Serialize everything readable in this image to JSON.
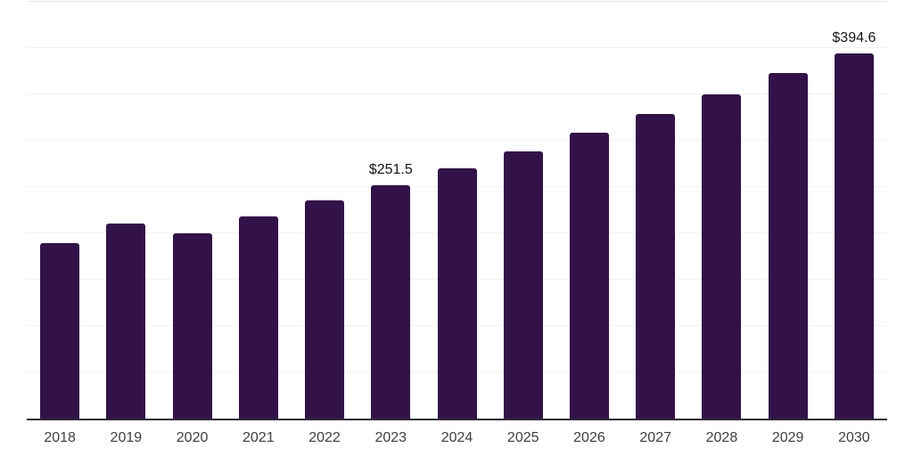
{
  "chart_data": {
    "type": "bar",
    "title": "",
    "xlabel": "",
    "ylabel": "",
    "categories": [
      "2018",
      "2019",
      "2020",
      "2021",
      "2022",
      "2023",
      "2024",
      "2025",
      "2026",
      "2027",
      "2028",
      "2029",
      "2030"
    ],
    "values": [
      189.1,
      210.9,
      200.3,
      218.0,
      235.6,
      251.5,
      269.9,
      288.5,
      308.4,
      328.6,
      350.0,
      373.4,
      394.6
    ],
    "data_labels": {
      "2023": "$251.5",
      "2030": "$394.6"
    },
    "ylim": [
      0,
      450
    ],
    "gridline_step": 50,
    "grid": "horizontal",
    "legend": "none",
    "y_tick_labels_visible": false,
    "colors": {
      "bar": "#33124a",
      "axis_line": "#2f2d38",
      "gridline": "#f2f2f2",
      "top_gridline": "#e7e7e7",
      "tick_label": "#3f3f3f",
      "data_label": "#161616",
      "background": "#ffffff"
    }
  }
}
